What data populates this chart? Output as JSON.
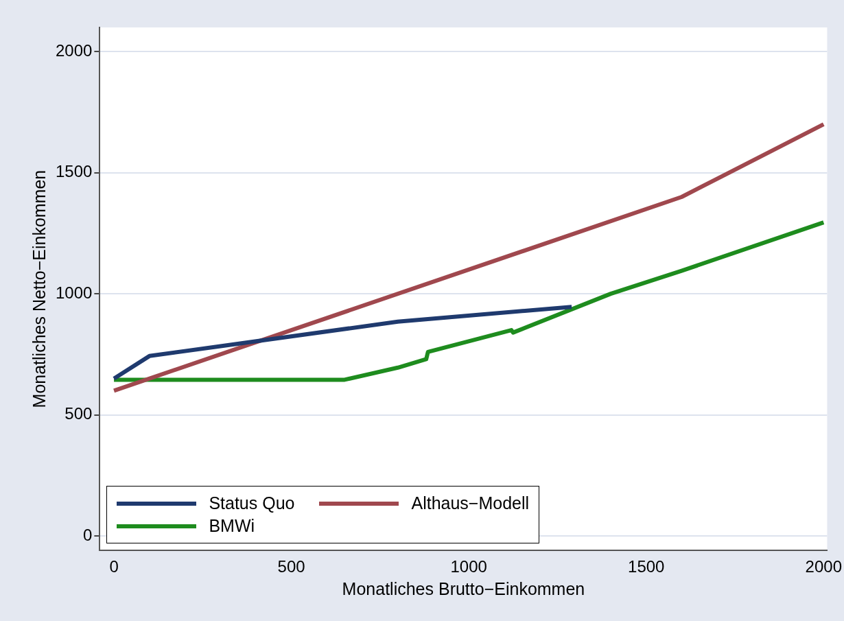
{
  "chart_data": {
    "type": "line",
    "xlabel": "Monatliches Brutto−Einkommen",
    "ylabel": "Monatliches Netto−Einkommen",
    "xlim": [
      -40,
      2010
    ],
    "ylim": [
      -60,
      2100
    ],
    "xticks": [
      0,
      500,
      1000,
      1500,
      2000
    ],
    "yticks": [
      0,
      500,
      1000,
      1500,
      2000
    ],
    "grid": "y",
    "legend": "bottom left",
    "marker": "none",
    "line_style": "solid",
    "series": [
      {
        "name": "Status Quo",
        "color": "#1f3a6e",
        "x": [
          0,
          100,
          800,
          1290
        ],
        "values": [
          650,
          743,
          885,
          946
        ]
      },
      {
        "name": "Althaus−Modell",
        "color": "#a0484e",
        "x": [
          0,
          1600,
          2000
        ],
        "values": [
          600,
          1400,
          1700
        ]
      },
      {
        "name": "BMWi",
        "color": "#1e8c1e",
        "x": [
          0,
          650,
          800,
          880,
          885,
          1120,
          1125,
          1400,
          1600,
          2000
        ],
        "values": [
          645,
          645,
          695,
          730,
          760,
          850,
          840,
          1000,
          1095,
          1295
        ]
      }
    ]
  }
}
